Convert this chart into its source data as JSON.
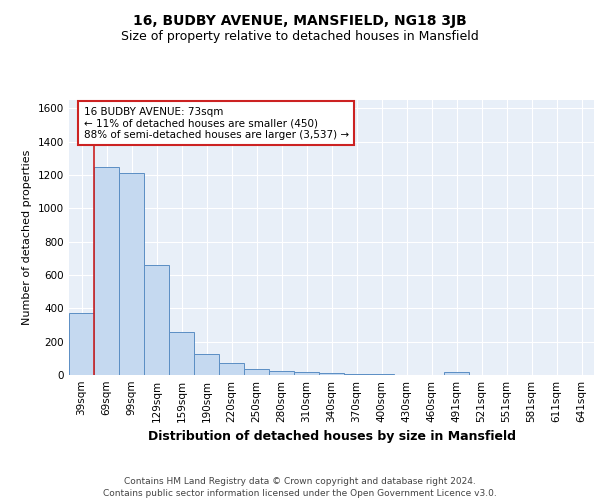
{
  "title1": "16, BUDBY AVENUE, MANSFIELD, NG18 3JB",
  "title2": "Size of property relative to detached houses in Mansfield",
  "xlabel": "Distribution of detached houses by size in Mansfield",
  "ylabel": "Number of detached properties",
  "categories": [
    "39sqm",
    "69sqm",
    "99sqm",
    "129sqm",
    "159sqm",
    "190sqm",
    "220sqm",
    "250sqm",
    "280sqm",
    "310sqm",
    "340sqm",
    "370sqm",
    "400sqm",
    "430sqm",
    "460sqm",
    "491sqm",
    "521sqm",
    "551sqm",
    "581sqm",
    "611sqm",
    "641sqm"
  ],
  "values": [
    370,
    1250,
    1210,
    660,
    260,
    125,
    70,
    38,
    25,
    18,
    12,
    8,
    5,
    3,
    0,
    18,
    0,
    0,
    0,
    0,
    0
  ],
  "bar_color": "#c5d9f0",
  "bar_edge_color": "#5b8ec4",
  "bg_color": "#e8eff8",
  "grid_color": "#ffffff",
  "red_line_x": 0.5,
  "annotation_text": "16 BUDBY AVENUE: 73sqm\n← 11% of detached houses are smaller (450)\n88% of semi-detached houses are larger (3,537) →",
  "annotation_box_color": "#ffffff",
  "annotation_box_edge": "#cc2222",
  "ylim": [
    0,
    1650
  ],
  "yticks": [
    0,
    200,
    400,
    600,
    800,
    1000,
    1200,
    1400,
    1600
  ],
  "footer": "Contains HM Land Registry data © Crown copyright and database right 2024.\nContains public sector information licensed under the Open Government Licence v3.0.",
  "title1_fontsize": 10,
  "title2_fontsize": 9,
  "xlabel_fontsize": 9,
  "ylabel_fontsize": 8,
  "tick_fontsize": 7.5,
  "annotation_fontsize": 7.5,
  "footer_fontsize": 6.5
}
